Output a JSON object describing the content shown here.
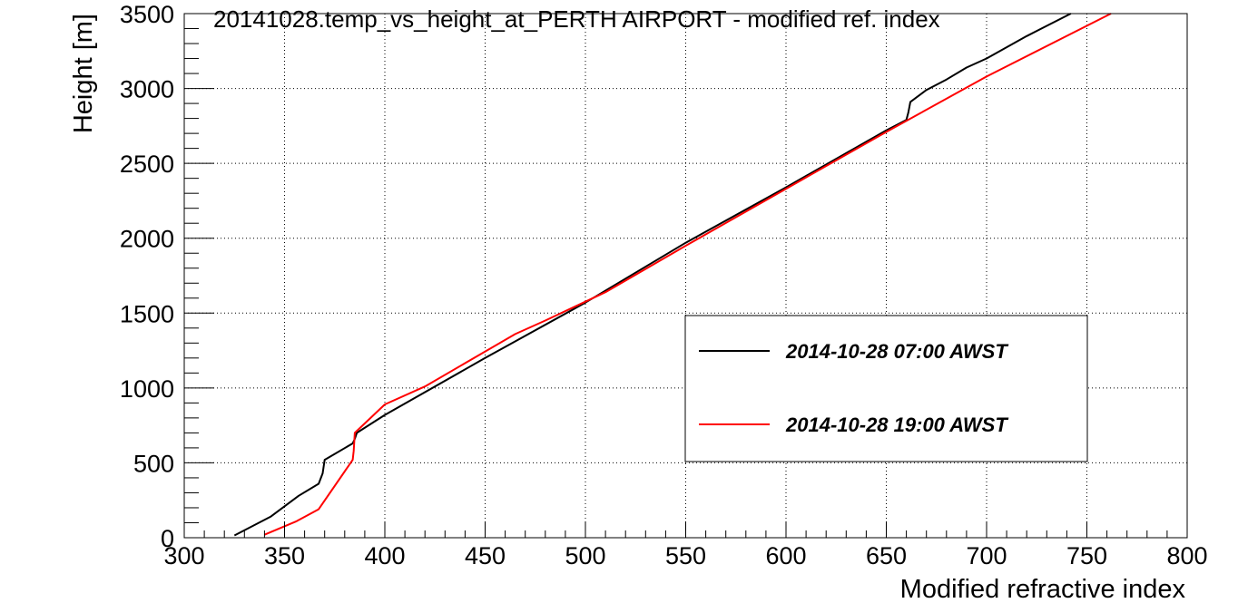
{
  "chart_data": {
    "type": "line",
    "title": "20141028.temp_vs_height_at_PERTH AIRPORT - modified ref. index",
    "xlabel": "Modified refractive index",
    "ylabel": "Height [m]",
    "xlim": [
      300,
      800
    ],
    "ylim": [
      0,
      3500
    ],
    "x_ticks": [
      "300",
      "350",
      "400",
      "450",
      "500",
      "550",
      "600",
      "650",
      "700",
      "750",
      "800"
    ],
    "y_ticks": [
      "0",
      "500",
      "1000",
      "1500",
      "2000",
      "2500",
      "3000",
      "3500"
    ],
    "grid": true,
    "legend_position": "center-right",
    "series": [
      {
        "name": "2014-10-28 07:00 AWST",
        "color": "#000000",
        "x": [
          325,
          343,
          357,
          367,
          369,
          370,
          384,
          385,
          386,
          400,
          450,
          500,
          550,
          600,
          650,
          660,
          661,
          662,
          670,
          680,
          690,
          700,
          720,
          742
        ],
        "y": [
          15,
          140,
          280,
          360,
          430,
          520,
          630,
          660,
          700,
          820,
          1200,
          1570,
          1970,
          2340,
          2720,
          2790,
          2840,
          2910,
          2990,
          3060,
          3140,
          3200,
          3350,
          3500
        ]
      },
      {
        "name": "2014-10-28 19:00 AWST",
        "color": "#ff0000",
        "x": [
          340,
          356,
          367,
          384,
          384.5,
          385,
          400,
          420,
          465,
          480,
          510,
          550,
          600,
          650,
          700,
          762
        ],
        "y": [
          20,
          110,
          190,
          520,
          580,
          700,
          890,
          1010,
          1360,
          1450,
          1640,
          1950,
          2330,
          2710,
          3080,
          3500
        ]
      }
    ]
  }
}
